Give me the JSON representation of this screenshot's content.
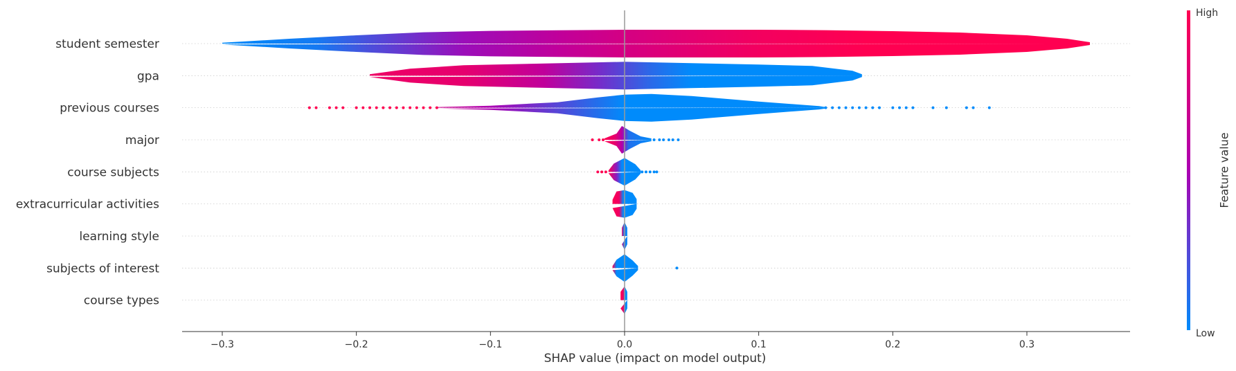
{
  "chart_data": {
    "type": "violin",
    "xlabel": "SHAP value (impact on model output)",
    "x_ticks": [
      "-0.3",
      "-0.2",
      "-0.1",
      "0.0",
      "0.1",
      "0.2",
      "0.3"
    ],
    "x_tick_values": [
      -0.3,
      -0.2,
      -0.1,
      0.0,
      0.1,
      0.2,
      0.3
    ],
    "xlim": [
      -0.33,
      0.38
    ],
    "grid": "horizontal dotted guide per feature",
    "colorbar": {
      "title": "Feature value",
      "high_label": "High",
      "low_label": "Low",
      "low_color": "#008bfb",
      "high_color": "#ff0051"
    },
    "features": [
      {
        "name": "student semester",
        "profile": [
          [
            -0.3,
            0.06
          ],
          [
            -0.25,
            0.35
          ],
          [
            -0.2,
            0.6
          ],
          [
            -0.15,
            0.82
          ],
          [
            -0.1,
            0.92
          ],
          [
            -0.05,
            0.96
          ],
          [
            0.0,
            1.0
          ],
          [
            0.05,
            1.0
          ],
          [
            0.1,
            1.0
          ],
          [
            0.15,
            0.97
          ],
          [
            0.2,
            0.9
          ],
          [
            0.25,
            0.8
          ],
          [
            0.3,
            0.6
          ],
          [
            0.33,
            0.35
          ],
          [
            0.347,
            0.1
          ]
        ],
        "color_profile": [
          [
            -0.3,
            0.0
          ],
          [
            -0.23,
            0.06
          ],
          [
            -0.19,
            0.22
          ],
          [
            -0.12,
            0.45
          ],
          [
            -0.05,
            0.62
          ],
          [
            0.0,
            0.74
          ],
          [
            0.05,
            0.84
          ],
          [
            0.1,
            0.93
          ],
          [
            0.18,
            1.0
          ],
          [
            0.347,
            1.0
          ]
        ],
        "points": []
      },
      {
        "name": "gpa",
        "profile": [
          [
            -0.19,
            0.1
          ],
          [
            -0.16,
            0.5
          ],
          [
            -0.12,
            0.75
          ],
          [
            -0.06,
            0.88
          ],
          [
            0.0,
            1.0
          ],
          [
            0.05,
            0.9
          ],
          [
            0.1,
            0.8
          ],
          [
            0.14,
            0.7
          ],
          [
            0.17,
            0.35
          ],
          [
            0.177,
            0.1
          ]
        ],
        "color_profile": [
          [
            -0.19,
            0.9
          ],
          [
            -0.12,
            0.85
          ],
          [
            -0.06,
            0.62
          ],
          [
            -0.02,
            0.35
          ],
          [
            0.02,
            0.12
          ],
          [
            0.05,
            0.0
          ],
          [
            0.177,
            0.0
          ]
        ],
        "points": []
      },
      {
        "name": "previous courses",
        "profile": [
          [
            -0.14,
            0.05
          ],
          [
            -0.1,
            0.15
          ],
          [
            -0.05,
            0.4
          ],
          [
            -0.02,
            0.75
          ],
          [
            0.0,
            0.95
          ],
          [
            0.02,
            1.0
          ],
          [
            0.05,
            0.85
          ],
          [
            0.1,
            0.45
          ],
          [
            0.145,
            0.12
          ],
          [
            0.15,
            0.05
          ]
        ],
        "color_profile": [
          [
            -0.14,
            0.7
          ],
          [
            -0.1,
            0.5
          ],
          [
            -0.05,
            0.25
          ],
          [
            -0.02,
            0.1
          ],
          [
            0.0,
            0.0
          ],
          [
            0.15,
            0.0
          ]
        ],
        "points": [
          [
            -0.235,
            1.0
          ],
          [
            -0.23,
            1.0
          ],
          [
            -0.22,
            1.0
          ],
          [
            -0.215,
            1.0
          ],
          [
            -0.21,
            1.0
          ],
          [
            -0.2,
            1.0
          ],
          [
            -0.195,
            1.0
          ],
          [
            -0.19,
            1.0
          ],
          [
            -0.185,
            1.0
          ],
          [
            -0.18,
            1.0
          ],
          [
            -0.175,
            1.0
          ],
          [
            -0.17,
            1.0
          ],
          [
            -0.165,
            1.0
          ],
          [
            -0.16,
            1.0
          ],
          [
            -0.155,
            1.0
          ],
          [
            -0.15,
            1.0
          ],
          [
            -0.145,
            1.0
          ],
          [
            -0.14,
            1.0
          ],
          [
            0.15,
            0.0
          ],
          [
            0.155,
            0.0
          ],
          [
            0.16,
            0.0
          ],
          [
            0.165,
            0.0
          ],
          [
            0.17,
            0.0
          ],
          [
            0.175,
            0.0
          ],
          [
            0.18,
            0.0
          ],
          [
            0.185,
            0.0
          ],
          [
            0.19,
            0.0
          ],
          [
            0.2,
            0.0
          ],
          [
            0.205,
            0.0
          ],
          [
            0.21,
            0.0
          ],
          [
            0.215,
            0.0
          ],
          [
            0.23,
            0.0
          ],
          [
            0.24,
            0.0
          ],
          [
            0.255,
            0.0
          ],
          [
            0.26,
            0.0
          ],
          [
            0.272,
            0.0
          ]
        ]
      },
      {
        "name": "major",
        "profile": [
          [
            -0.015,
            0.1
          ],
          [
            -0.006,
            0.45
          ],
          [
            -0.002,
            1.0
          ],
          [
            0.004,
            0.65
          ],
          [
            0.012,
            0.25
          ],
          [
            0.02,
            0.1
          ]
        ],
        "color_profile": [
          [
            -0.015,
            1.0
          ],
          [
            -0.007,
            0.85
          ],
          [
            -0.002,
            0.55
          ],
          [
            0.003,
            0.1
          ],
          [
            0.02,
            0.0
          ]
        ],
        "points": [
          [
            -0.024,
            1.0
          ],
          [
            -0.019,
            1.0
          ],
          [
            -0.016,
            1.0
          ],
          [
            0.022,
            0.0
          ],
          [
            0.026,
            0.0
          ],
          [
            0.029,
            0.0
          ],
          [
            0.033,
            0.0
          ],
          [
            0.036,
            0.0
          ],
          [
            0.04,
            0.0
          ]
        ]
      },
      {
        "name": "course subjects",
        "profile": [
          [
            -0.012,
            0.1
          ],
          [
            -0.008,
            0.6
          ],
          [
            0.0,
            1.0
          ],
          [
            0.008,
            0.55
          ],
          [
            0.012,
            0.12
          ]
        ],
        "color_profile": [
          [
            -0.012,
            1.0
          ],
          [
            -0.006,
            0.4
          ],
          [
            -0.002,
            0.0
          ],
          [
            0.012,
            0.0
          ]
        ],
        "points": [
          [
            -0.02,
            1.0
          ],
          [
            -0.017,
            1.0
          ],
          [
            -0.014,
            1.0
          ],
          [
            0.013,
            0.0
          ],
          [
            0.016,
            0.0
          ],
          [
            0.019,
            0.0
          ],
          [
            0.022,
            0.0
          ],
          [
            0.024,
            0.0
          ]
        ]
      },
      {
        "name": "extracurricular activities",
        "profile": [
          [
            -0.009,
            0.3
          ],
          [
            -0.006,
            0.9
          ],
          [
            0.0,
            1.0
          ],
          [
            0.006,
            0.8
          ],
          [
            0.009,
            0.35
          ]
        ],
        "color_profile": [
          [
            -0.009,
            1.0
          ],
          [
            -0.004,
            0.9
          ],
          [
            -0.001,
            0.0
          ],
          [
            0.009,
            0.0
          ]
        ],
        "points": []
      },
      {
        "name": "learning style",
        "profile": [
          [
            -0.002,
            0.6
          ],
          [
            0.0,
            1.0
          ],
          [
            0.002,
            0.6
          ]
        ],
        "color_profile": [
          [
            -0.002,
            0.9
          ],
          [
            -0.0005,
            0.1
          ],
          [
            0.002,
            0.0
          ]
        ],
        "points": []
      },
      {
        "name": "subjects of interest",
        "profile": [
          [
            -0.009,
            0.15
          ],
          [
            -0.006,
            0.6
          ],
          [
            0.0,
            1.0
          ],
          [
            0.006,
            0.55
          ],
          [
            0.01,
            0.15
          ]
        ],
        "color_profile": [
          [
            -0.009,
            1.0
          ],
          [
            -0.006,
            0.0
          ],
          [
            0.01,
            0.0
          ]
        ],
        "points": [
          [
            0.039,
            0.0
          ]
        ]
      },
      {
        "name": "course types",
        "profile": [
          [
            -0.003,
            0.6
          ],
          [
            0.0,
            1.0
          ],
          [
            0.002,
            0.6
          ]
        ],
        "color_profile": [
          [
            -0.003,
            1.0
          ],
          [
            -0.001,
            0.9
          ],
          [
            0.0005,
            0.0
          ],
          [
            0.002,
            0.0
          ]
        ],
        "points": []
      }
    ]
  }
}
